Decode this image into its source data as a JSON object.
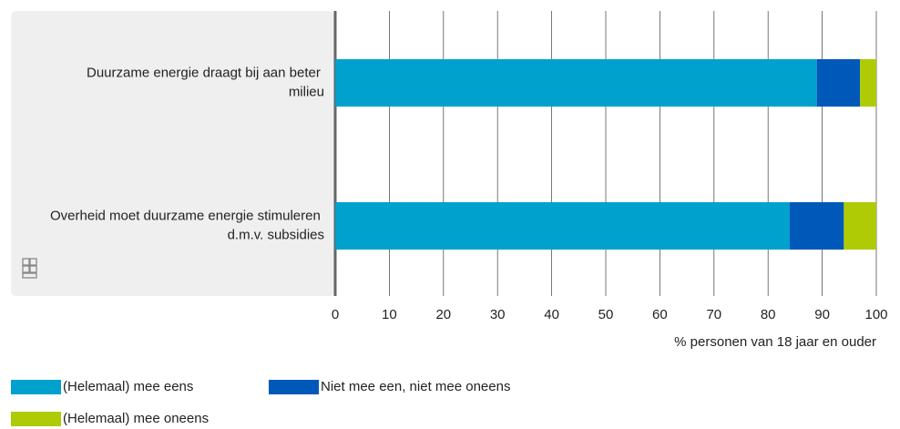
{
  "chart_data": {
    "type": "stacked-barh",
    "categories": [
      "Duurzame energie draagt bij aan beter milieu",
      "Overheid moet duurzame energie stimuleren d.m.v. subsidies"
    ],
    "series": [
      {
        "name": "(Helemaal) mee eens",
        "color": "#00a1cd",
        "values": [
          89,
          84
        ]
      },
      {
        "name": "Niet mee een, niet mee oneens",
        "color": "#0058b8",
        "values": [
          8,
          10
        ]
      },
      {
        "name": "(Helemaal) mee oneens",
        "color": "#afcb05",
        "values": [
          3,
          6
        ]
      }
    ],
    "xlim": [
      0,
      100
    ],
    "xticks": [
      0,
      10,
      20,
      30,
      40,
      50,
      60,
      70,
      80,
      90,
      100
    ],
    "xlabel": "% personen van 18 jaar en ouder",
    "grid": true
  }
}
